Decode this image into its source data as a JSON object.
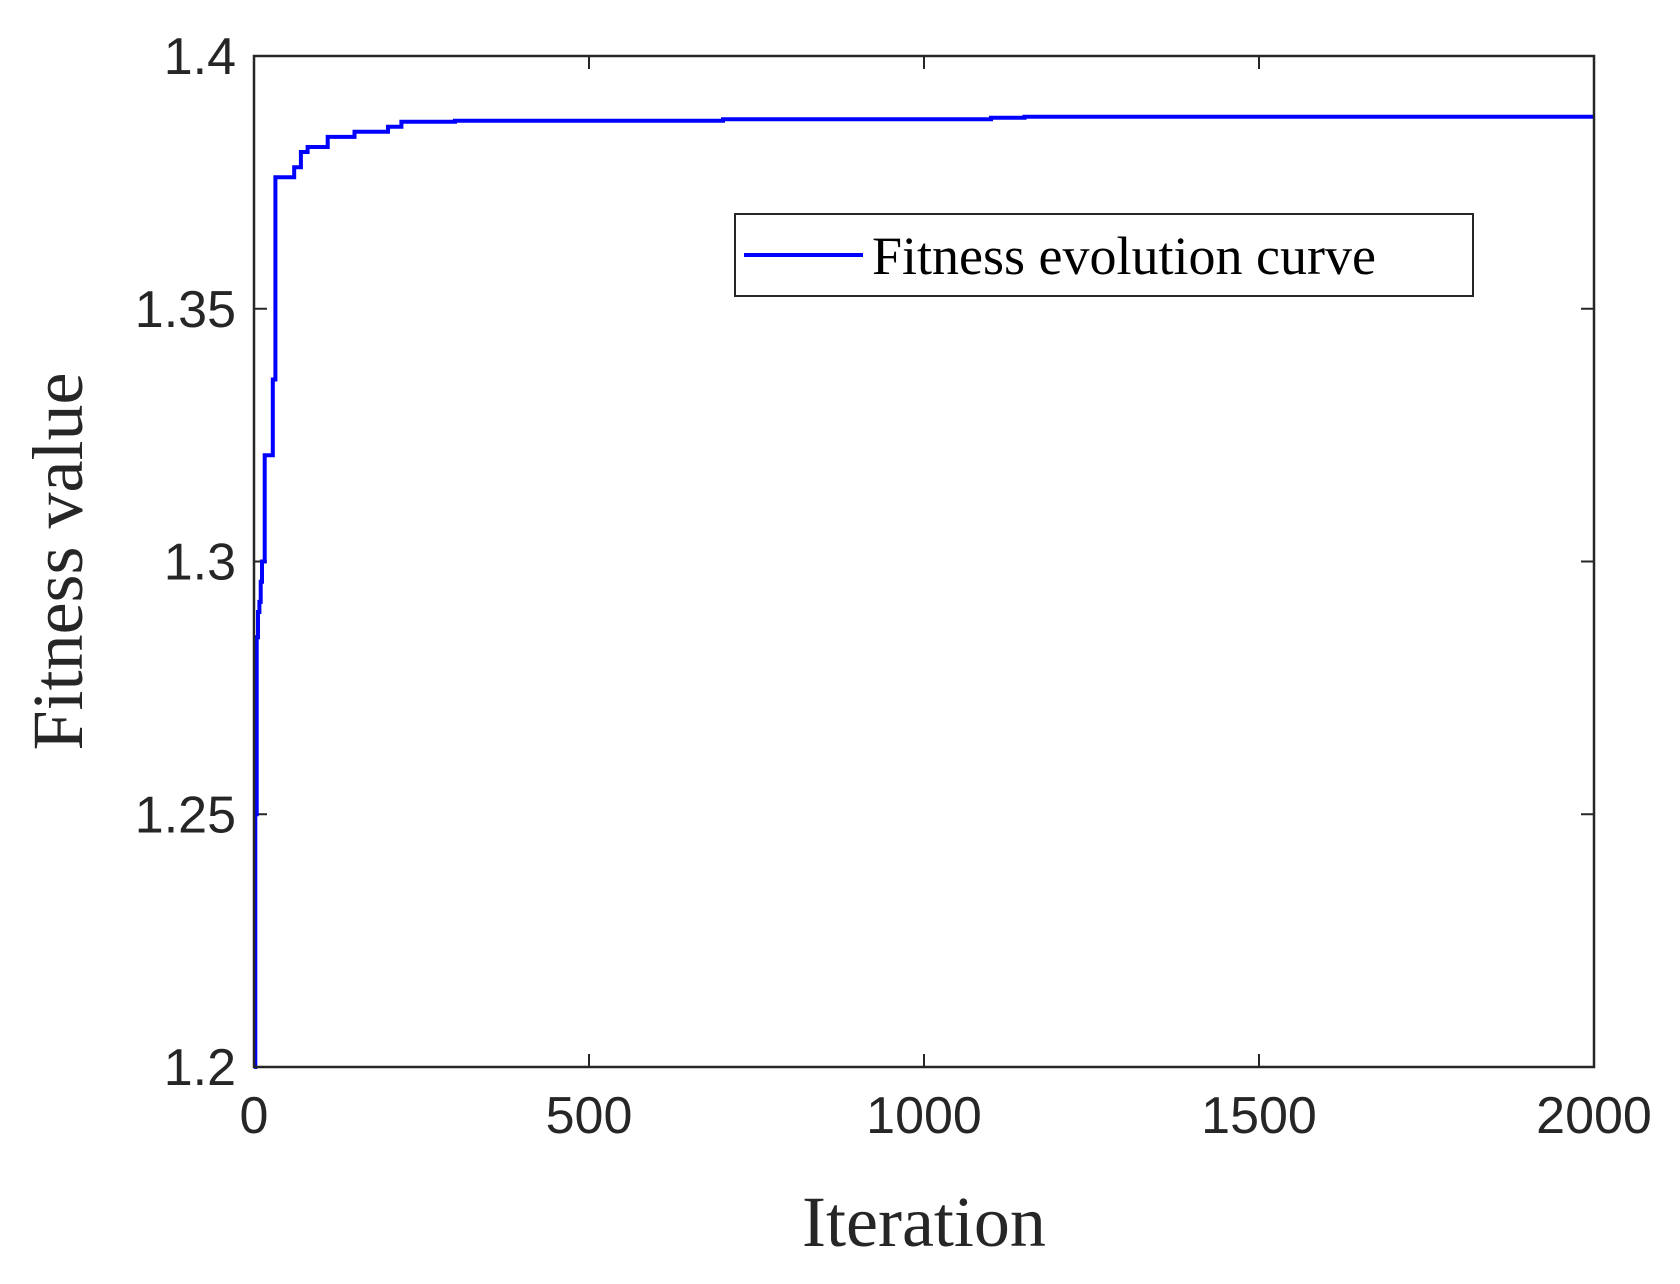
{
  "chart_data": {
    "type": "line",
    "title": "",
    "xlabel": "Iteration",
    "ylabel": "Fitness value",
    "xlim": [
      0,
      2000
    ],
    "ylim": [
      1.2,
      1.4
    ],
    "xticks": [
      0,
      500,
      1000,
      1500,
      2000
    ],
    "xtick_labels": [
      "0",
      "500",
      "1000",
      "1500",
      "2000"
    ],
    "yticks": [
      1.2,
      1.25,
      1.3,
      1.35,
      1.4
    ],
    "ytick_labels": [
      "1.2",
      "1.25",
      "1.3",
      "1.35",
      "1.4"
    ],
    "grid": false,
    "legend_position": "top-right",
    "series": [
      {
        "name": "Fitness evolution curve",
        "color": "#0000ff",
        "step": true,
        "x": [
          0,
          2,
          4,
          6,
          8,
          10,
          12,
          16,
          20,
          28,
          32,
          36,
          60,
          70,
          80,
          110,
          130,
          150,
          200,
          210,
          220,
          230,
          300,
          700,
          1100,
          1150,
          2000
        ],
        "y": [
          1.2,
          1.25,
          1.285,
          1.29,
          1.292,
          1.296,
          1.3,
          1.321,
          1.321,
          1.336,
          1.376,
          1.376,
          1.378,
          1.381,
          1.382,
          1.384,
          1.384,
          1.385,
          1.386,
          1.386,
          1.387,
          1.387,
          1.3872,
          1.3875,
          1.3878,
          1.388,
          1.388
        ]
      }
    ]
  }
}
